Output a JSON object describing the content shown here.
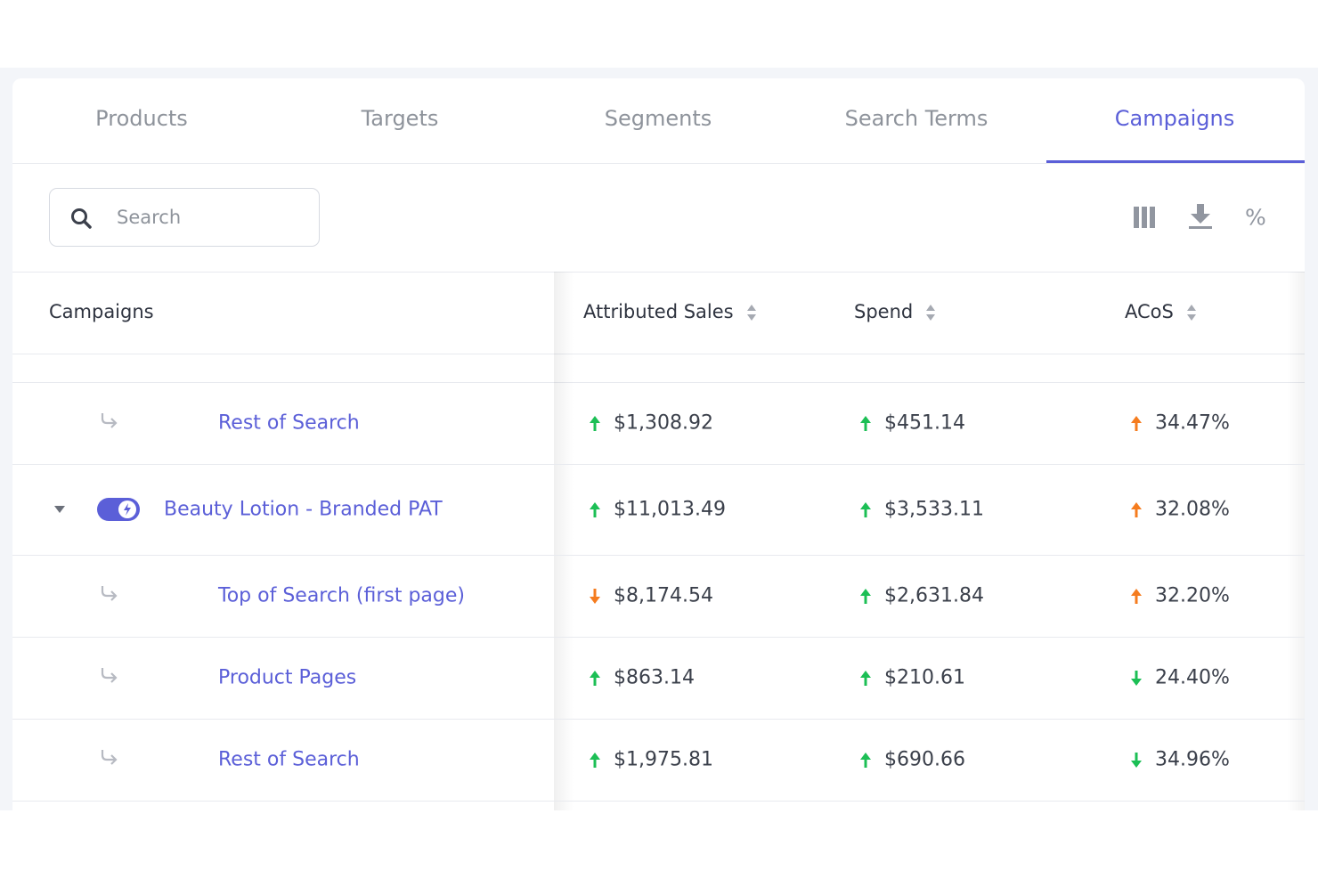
{
  "tabs": [
    {
      "label": "Products",
      "active": false
    },
    {
      "label": "Targets",
      "active": false
    },
    {
      "label": "Segments",
      "active": false
    },
    {
      "label": "Search Terms",
      "active": false
    },
    {
      "label": "Campaigns",
      "active": true
    }
  ],
  "search": {
    "placeholder": "Search"
  },
  "toolbar": {
    "percent": "%"
  },
  "table": {
    "columns": [
      "Campaigns",
      "Attributed Sales",
      "Spend",
      "ACoS"
    ],
    "rows": [
      {
        "level": "child",
        "name": "Rest of Search",
        "cells": [
          {
            "text": "$1,308.92",
            "trend": "up",
            "color": "#1cbf55"
          },
          {
            "text": "$451.14",
            "trend": "up",
            "color": "#1cbf55"
          },
          {
            "text": "34.47%",
            "trend": "up",
            "color": "#f57c1f"
          }
        ]
      },
      {
        "level": "parent",
        "name": "Beauty Lotion - Branded PAT",
        "cells": [
          {
            "text": "$11,013.49",
            "trend": "up",
            "color": "#1cbf55"
          },
          {
            "text": "$3,533.11",
            "trend": "up",
            "color": "#1cbf55"
          },
          {
            "text": "32.08%",
            "trend": "up",
            "color": "#f57c1f"
          }
        ]
      },
      {
        "level": "child",
        "name": "Top of Search (first page)",
        "cells": [
          {
            "text": "$8,174.54",
            "trend": "down",
            "color": "#f57c1f"
          },
          {
            "text": "$2,631.84",
            "trend": "up",
            "color": "#1cbf55"
          },
          {
            "text": "32.20%",
            "trend": "up",
            "color": "#f57c1f"
          }
        ]
      },
      {
        "level": "child",
        "name": "Product Pages",
        "cells": [
          {
            "text": "$863.14",
            "trend": "up",
            "color": "#1cbf55"
          },
          {
            "text": "$210.61",
            "trend": "up",
            "color": "#1cbf55"
          },
          {
            "text": "24.40%",
            "trend": "down",
            "color": "#1cbf55"
          }
        ]
      },
      {
        "level": "child",
        "name": "Rest of Search",
        "cells": [
          {
            "text": "$1,975.81",
            "trend": "up",
            "color": "#1cbf55"
          },
          {
            "text": "$690.66",
            "trend": "up",
            "color": "#1cbf55"
          },
          {
            "text": "34.96%",
            "trend": "down",
            "color": "#1cbf55"
          }
        ]
      }
    ]
  }
}
